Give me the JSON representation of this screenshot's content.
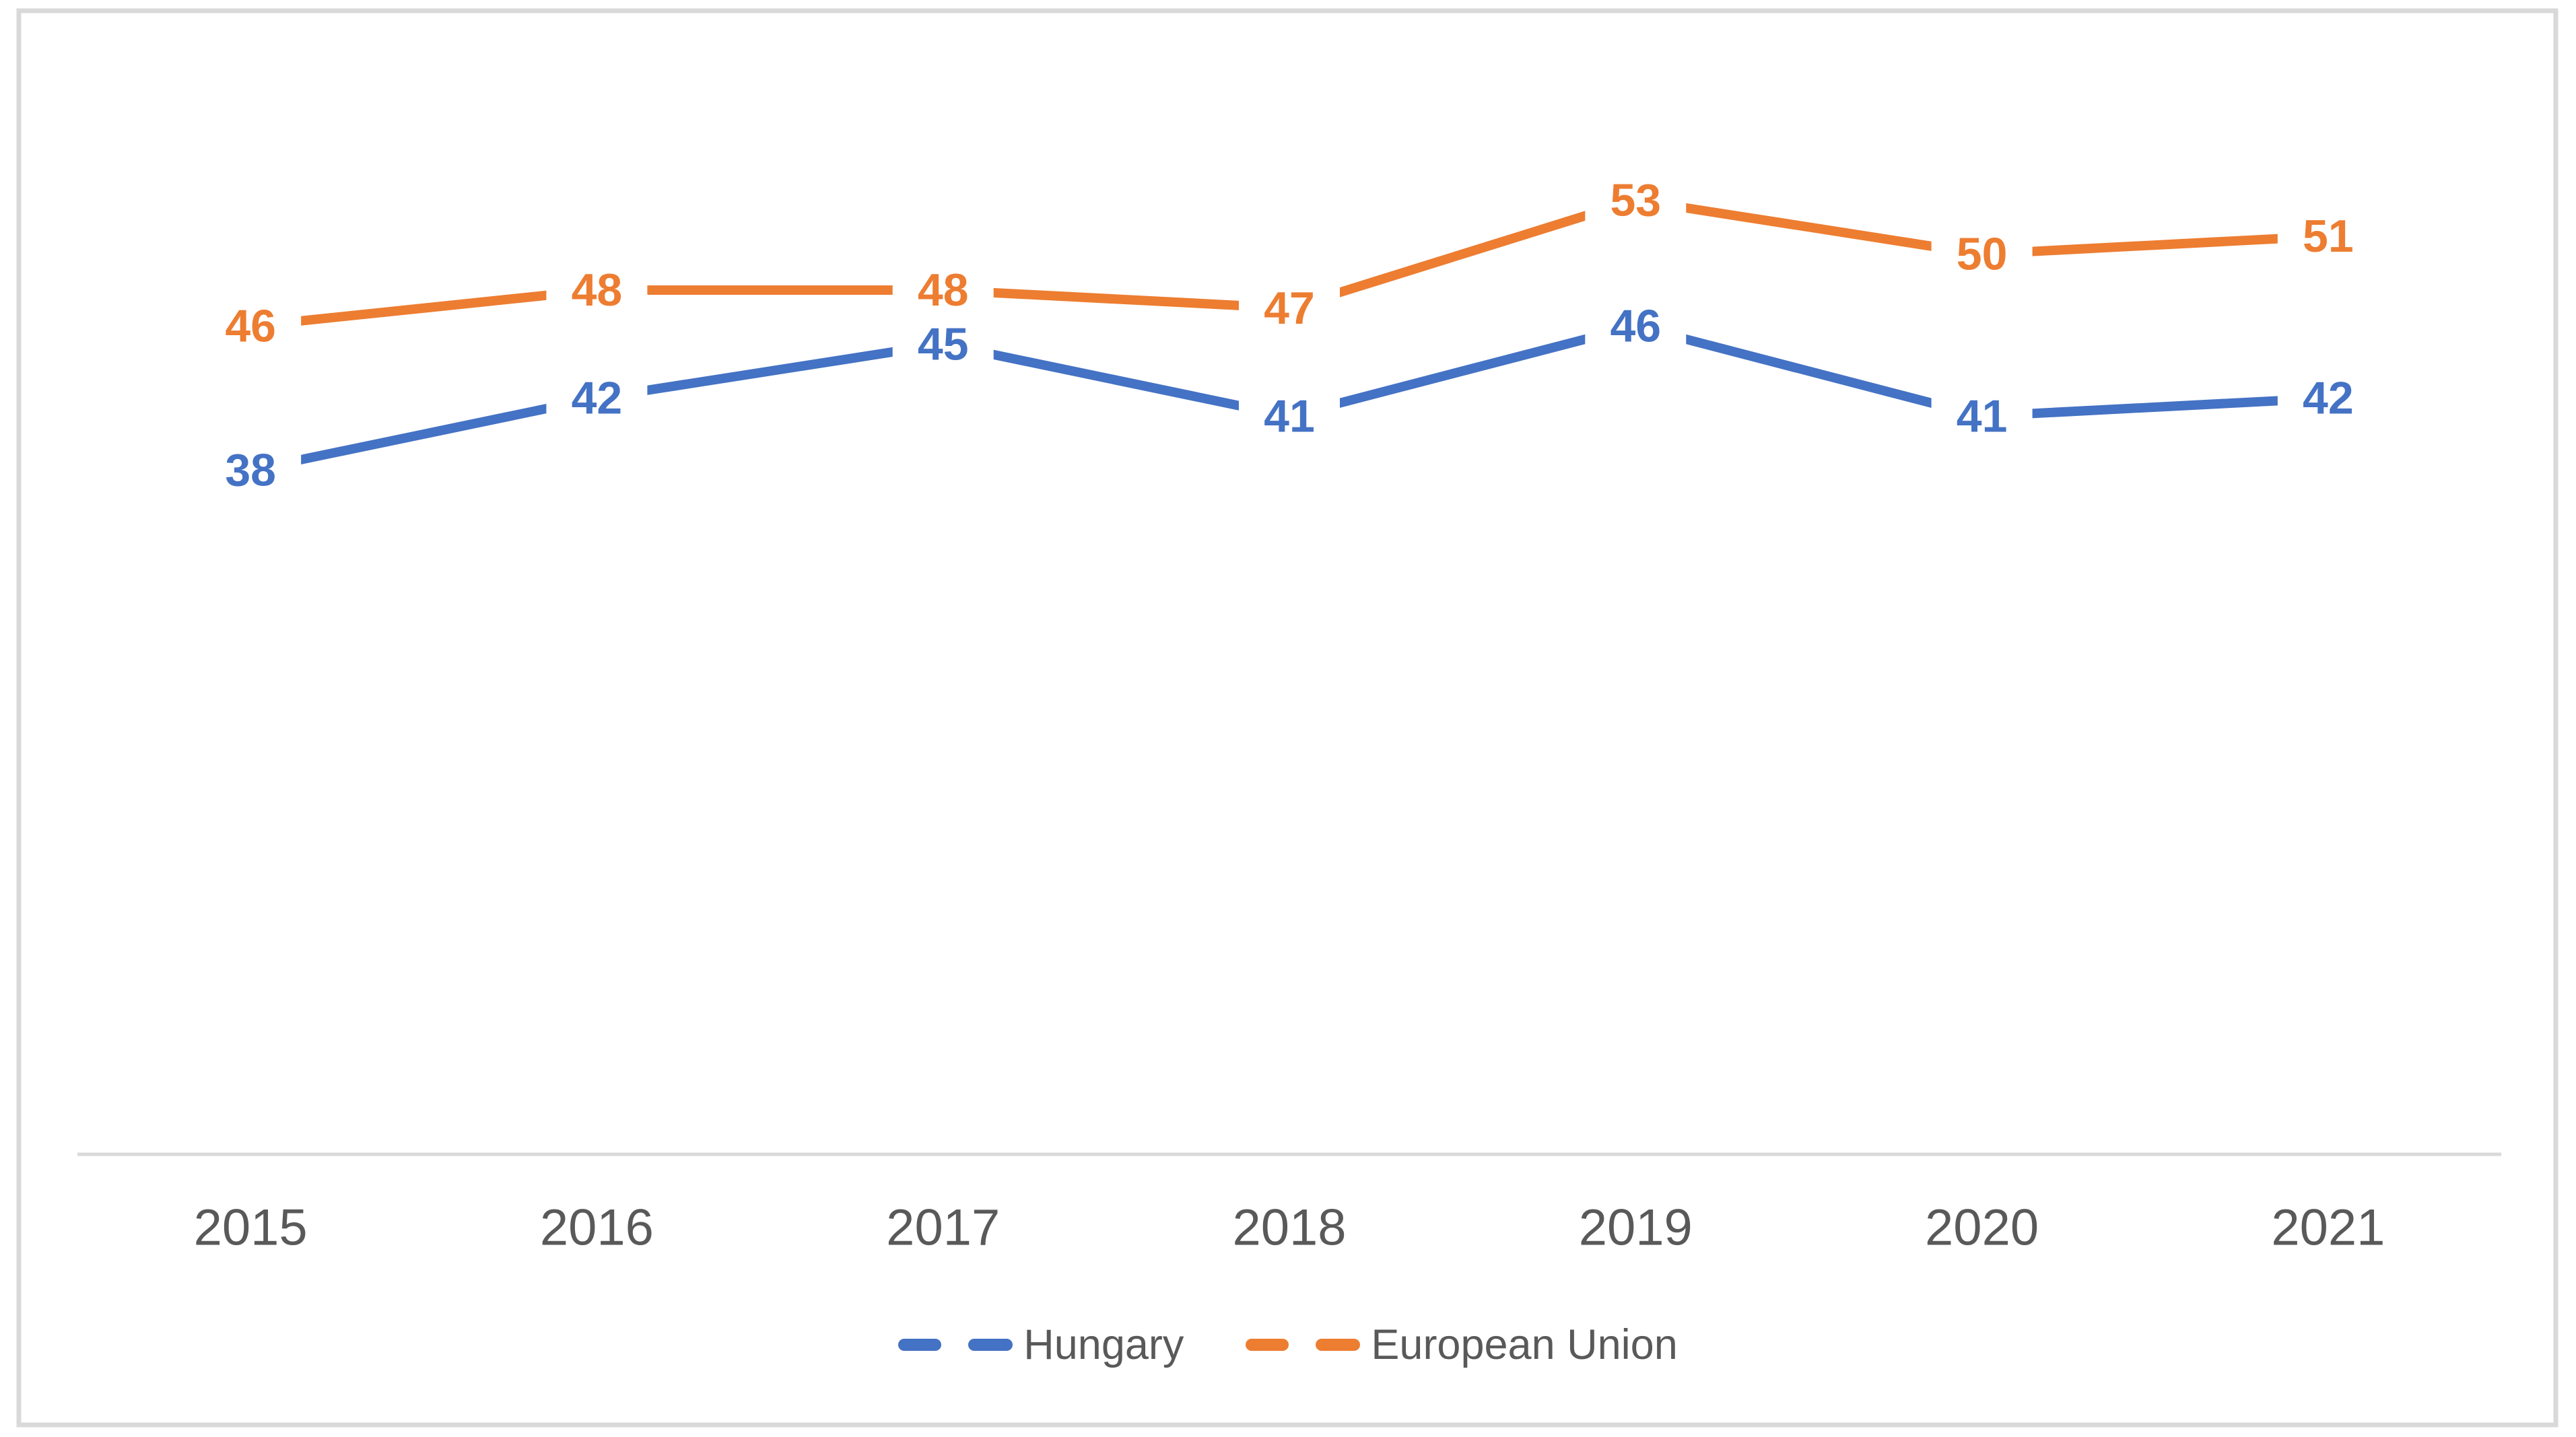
{
  "chart_data": {
    "type": "line",
    "title": "",
    "xlabel": "",
    "ylabel": "",
    "categories": [
      "2015",
      "2016",
      "2017",
      "2018",
      "2019",
      "2020",
      "2021"
    ],
    "series": [
      {
        "name": "Hungary",
        "color": "#4472C4",
        "values": [
          38,
          42,
          45,
          41,
          46,
          41,
          42
        ]
      },
      {
        "name": "European Union",
        "color": "#ED7D31",
        "values": [
          46,
          48,
          48,
          47,
          53,
          50,
          51
        ]
      }
    ],
    "ylim": [
      0,
      60
    ],
    "grid": false,
    "y_axis_visible": false,
    "legend_position": "bottom",
    "data_labels_position": "center",
    "line_style": "dashed",
    "axis_line_color": "#D9D9D9",
    "border_color": "#D9D9D9",
    "tick_label_color": "#595959",
    "background": "#FFFFFF"
  }
}
